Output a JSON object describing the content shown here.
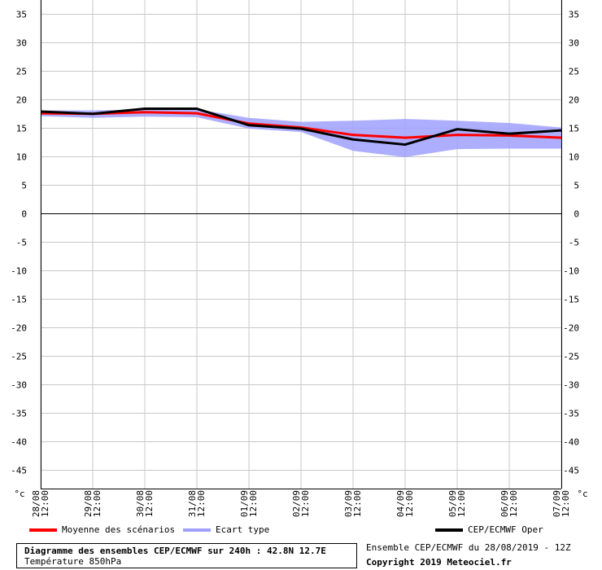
{
  "chart_data": {
    "type": "line",
    "unit": "°c",
    "ylim": [
      -45,
      35
    ],
    "y_ticks": [
      35,
      30,
      25,
      20,
      15,
      10,
      5,
      0,
      -5,
      -10,
      -15,
      -20,
      -25,
      -30,
      -35,
      -40,
      -45
    ],
    "x_ticks": [
      {
        "date": "28/08",
        "time": "12:00"
      },
      {
        "date": "29/08",
        "time": "12:00"
      },
      {
        "date": "30/08",
        "time": "12:00"
      },
      {
        "date": "31/08",
        "time": "12:00"
      },
      {
        "date": "01/09",
        "time": "12:00"
      },
      {
        "date": "02/09",
        "time": "12:00"
      },
      {
        "date": "03/09",
        "time": "12:00"
      },
      {
        "date": "04/09",
        "time": "12:00"
      },
      {
        "date": "05/09",
        "time": "12:00"
      },
      {
        "date": "06/09",
        "time": "12:00"
      },
      {
        "date": "07/09",
        "time": "12:00"
      }
    ],
    "grid": true,
    "series": [
      {
        "name": "Moyenne des scénarios",
        "color": "#ff0000",
        "values": [
          17.6,
          17.5,
          17.8,
          17.6,
          15.8,
          15.1,
          13.8,
          13.3,
          13.8,
          13.7,
          13.3
        ]
      },
      {
        "name": "Ecart type",
        "color": "#a0a0ff",
        "type": "band",
        "upper": [
          18.1,
          18.1,
          18.3,
          18.3,
          16.8,
          16.1,
          16.3,
          16.6,
          16.3,
          15.9,
          15.1
        ],
        "lower": [
          17.1,
          16.8,
          17.0,
          16.9,
          14.9,
          14.3,
          11.0,
          9.9,
          11.3,
          11.4,
          11.4
        ]
      },
      {
        "name": "CEP/ECMWF Oper",
        "color": "#000000",
        "values": [
          17.9,
          17.5,
          18.4,
          18.4,
          15.5,
          14.9,
          13.0,
          12.1,
          14.8,
          14.0,
          14.6
        ]
      }
    ]
  },
  "legend": {
    "mean_label": "Moyenne des scénarios",
    "spread_label": "Ecart type",
    "oper_label": "CEP/ECMWF Oper"
  },
  "footer": {
    "title": "Diagramme des ensembles CEP/ECMWF sur 240h : 42.8N 12.7E",
    "subtitle": "Température 850hPa",
    "run": "Ensemble CEP/ECMWF du 28/08/2019 - 12Z",
    "copyright": "Copyright 2019 Meteociel.fr"
  }
}
